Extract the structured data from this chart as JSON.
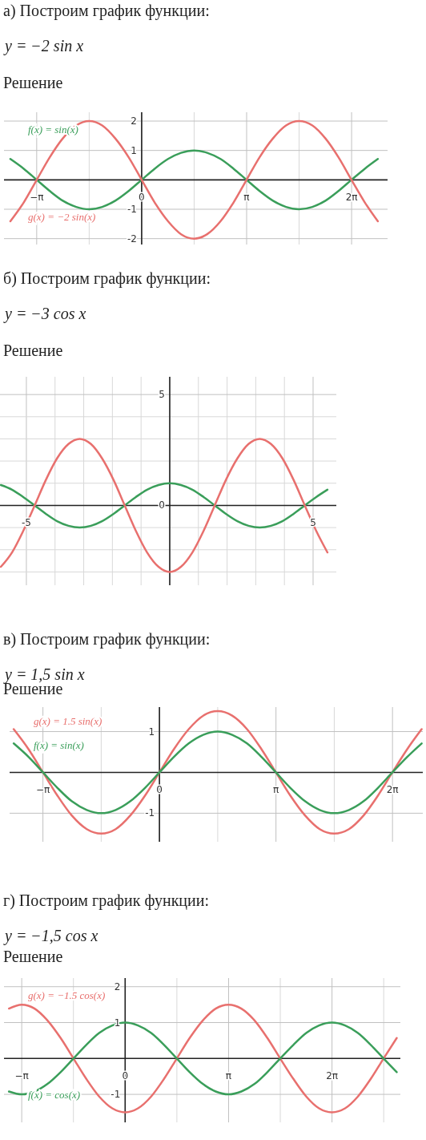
{
  "chart_data": [
    {
      "type": "line",
      "title": "а) Построим график функции:",
      "subtitle": "y = −2 sin x",
      "annotations": [
        "Решение"
      ],
      "xlim": [
        -4.12,
        7.36
      ],
      "ylim": [
        -2.2,
        2.3
      ],
      "xticks": [
        {
          "value": -3.1416,
          "label": "−π"
        },
        {
          "value": -1.5708,
          "label": null
        },
        {
          "value": 0,
          "label": "0"
        },
        {
          "value": 1.5708,
          "label": null
        },
        {
          "value": 3.1416,
          "label": "π"
        },
        {
          "value": 4.7124,
          "label": null
        },
        {
          "value": 6.2832,
          "label": "2π"
        }
      ],
      "yticks": [
        -2,
        -1,
        1,
        2
      ],
      "grid": true,
      "legend": "left",
      "x": [
        -3.93,
        -3.53,
        -3.14,
        -2.75,
        -2.36,
        -1.96,
        -1.57,
        -1.18,
        -0.79,
        -0.39,
        0,
        0.39,
        0.79,
        1.18,
        1.57,
        1.96,
        2.36,
        2.75,
        3.14,
        3.53,
        3.93,
        4.32,
        4.71,
        5.11,
        5.5,
        5.89,
        6.28,
        6.68,
        7.07
      ],
      "series": [
        {
          "name": "f(x) = sin(x)",
          "color": "#3a9e5a",
          "values": [
            0.71,
            0.38,
            0,
            -0.38,
            -0.71,
            -0.92,
            -1,
            -0.92,
            -0.71,
            -0.38,
            0,
            0.38,
            0.71,
            0.92,
            1,
            0.92,
            0.71,
            0.38,
            0,
            -0.38,
            -0.71,
            -0.92,
            -1,
            -0.92,
            -0.71,
            -0.38,
            0,
            0.38,
            0.71
          ]
        },
        {
          "name": "g(x) = −2 sin(x)",
          "color": "#e8706e",
          "values": [
            -1.41,
            -0.77,
            0,
            0.77,
            1.41,
            1.85,
            2,
            1.85,
            1.41,
            0.77,
            0,
            -0.77,
            -1.41,
            -1.85,
            -2,
            -1.85,
            -1.41,
            -0.77,
            0,
            0.77,
            1.41,
            1.85,
            2,
            1.85,
            1.41,
            0.77,
            0,
            -0.77,
            -1.41
          ]
        }
      ]
    },
    {
      "type": "line",
      "title": "б) Построим график функции:",
      "subtitle": "y = −3 cos x",
      "annotations": [
        "Решение"
      ],
      "xlim": [
        -5.92,
        5.81
      ],
      "ylim": [
        -3.6,
        5.8
      ],
      "xticks": [
        -5,
        {
          "value": -4,
          "label": null
        },
        {
          "value": -3,
          "label": null
        },
        {
          "value": -2,
          "label": null
        },
        {
          "value": -1,
          "label": null
        },
        {
          "value": 0,
          "label": null
        },
        {
          "value": 1,
          "label": null
        },
        {
          "value": 2,
          "label": null
        },
        {
          "value": 3,
          "label": null
        },
        {
          "value": 4,
          "label": null
        },
        5
      ],
      "yticks": [
        {
          "value": -3,
          "label": null
        },
        {
          "value": -2,
          "label": null
        },
        {
          "value": -1,
          "label": null
        },
        0,
        {
          "value": 1,
          "label": null
        },
        {
          "value": 2,
          "label": null
        },
        {
          "value": 3,
          "label": null
        },
        {
          "value": 4,
          "label": null
        },
        5
      ],
      "grid": true,
      "x": [
        -5.89,
        -5.5,
        -5.11,
        -4.71,
        -4.32,
        -3.93,
        -3.53,
        -3.14,
        -2.75,
        -2.36,
        -1.96,
        -1.57,
        -1.18,
        -0.79,
        -0.39,
        0,
        0.39,
        0.79,
        1.18,
        1.57,
        1.96,
        2.36,
        2.75,
        3.14,
        3.53,
        3.93,
        4.32,
        4.71,
        5.11,
        5.5
      ],
      "series": [
        {
          "color": "#3a9e5a",
          "values": [
            0.92,
            0.71,
            0.38,
            0,
            -0.38,
            -0.71,
            -0.92,
            -1,
            -0.92,
            -0.71,
            -0.38,
            0,
            0.38,
            0.71,
            0.92,
            1,
            0.92,
            0.71,
            0.38,
            0,
            -0.38,
            -0.71,
            -0.92,
            -1,
            -0.92,
            -0.71,
            -0.38,
            0,
            0.38,
            0.71
          ]
        },
        {
          "color": "#e8706e",
          "values": [
            -2.77,
            -2.12,
            -1.15,
            0,
            1.15,
            2.12,
            2.77,
            3,
            2.77,
            2.12,
            1.15,
            0,
            -1.15,
            -2.12,
            -2.77,
            -3,
            -2.77,
            -2.12,
            -1.15,
            0,
            1.15,
            2.12,
            2.77,
            3,
            2.77,
            2.12,
            1.15,
            0,
            -1.15,
            -2.12
          ]
        }
      ]
    },
    {
      "type": "line",
      "title": "в) Построим график функции:",
      "subtitle": "y = 1,5 sin x",
      "annotations": [
        "Решение"
      ],
      "xlim": [
        -4.04,
        7.1
      ],
      "ylim": [
        -1.7,
        1.6
      ],
      "xticks": [
        {
          "value": -3.1416,
          "label": "−π"
        },
        {
          "value": -1.5708,
          "label": null
        },
        {
          "value": 0,
          "label": "0"
        },
        {
          "value": 1.5708,
          "label": null
        },
        {
          "value": 3.1416,
          "label": "π"
        },
        {
          "value": 4.7124,
          "label": null
        },
        {
          "value": 6.2832,
          "label": "2π"
        }
      ],
      "yticks": [
        -1,
        1
      ],
      "grid": true,
      "legend": "top left",
      "x": [
        -3.93,
        -3.53,
        -3.14,
        -2.75,
        -2.36,
        -1.96,
        -1.57,
        -1.18,
        -0.79,
        -0.39,
        0,
        0.39,
        0.79,
        1.18,
        1.57,
        1.96,
        2.36,
        2.75,
        3.14,
        3.53,
        3.93,
        4.32,
        4.71,
        5.11,
        5.5,
        5.89,
        6.28,
        6.68,
        7.07
      ],
      "series": [
        {
          "name": "g(x) = 1.5 sin(x)",
          "color": "#e8706e",
          "values": [
            1.06,
            0.57,
            0,
            -0.57,
            -1.06,
            -1.39,
            -1.5,
            -1.39,
            -1.06,
            -0.57,
            0,
            0.57,
            1.06,
            1.39,
            1.5,
            1.39,
            1.06,
            0.57,
            0,
            -0.57,
            -1.06,
            -1.39,
            -1.5,
            -1.39,
            -1.06,
            -0.57,
            0,
            0.57,
            1.06
          ]
        },
        {
          "name": "f(x) = sin(x)",
          "color": "#3a9e5a",
          "values": [
            0.71,
            0.38,
            0,
            -0.38,
            -0.71,
            -0.92,
            -1,
            -0.92,
            -0.71,
            -0.38,
            0,
            0.38,
            0.71,
            0.92,
            1,
            0.92,
            0.71,
            0.38,
            0,
            -0.38,
            -0.71,
            -0.92,
            -1,
            -0.92,
            -0.71,
            -0.38,
            0,
            0.38,
            0.71
          ]
        }
      ]
    },
    {
      "type": "line",
      "title": "г) Построим график функции:",
      "subtitle": "y = −1,5 cos x",
      "annotations": [
        "Решение"
      ],
      "xlim": [
        -3.68,
        8.36
      ],
      "ylim": [
        -1.78,
        2.24
      ],
      "xticks": [
        {
          "value": -3.1416,
          "label": "−π"
        },
        {
          "value": -1.5708,
          "label": null
        },
        {
          "value": 0,
          "label": "0"
        },
        {
          "value": 1.5708,
          "label": null
        },
        {
          "value": 3.1416,
          "label": "π"
        },
        {
          "value": 4.7124,
          "label": null
        },
        {
          "value": 6.2832,
          "label": "2π"
        },
        {
          "value": 7.854,
          "label": null
        }
      ],
      "yticks": [
        -1,
        1,
        2
      ],
      "grid": true,
      "legend": "left",
      "x": [
        -3.53,
        -3.14,
        -2.75,
        -2.36,
        -1.96,
        -1.57,
        -1.18,
        -0.79,
        -0.39,
        0,
        0.39,
        0.79,
        1.18,
        1.57,
        1.96,
        2.36,
        2.75,
        3.14,
        3.53,
        3.93,
        4.32,
        4.71,
        5.11,
        5.5,
        5.89,
        6.28,
        6.68,
        7.07,
        7.46,
        7.85,
        8.25
      ],
      "series": [
        {
          "name": "g(x) = −1.5 cos(x)",
          "color": "#e8706e",
          "values": [
            1.39,
            1.5,
            1.39,
            1.06,
            0.57,
            0,
            -0.57,
            -1.06,
            -1.39,
            -1.5,
            -1.39,
            -1.06,
            -0.57,
            0,
            0.57,
            1.06,
            1.39,
            1.5,
            1.39,
            1.06,
            0.57,
            0,
            -0.57,
            -1.06,
            -1.39,
            -1.5,
            -1.39,
            -1.06,
            -0.57,
            0,
            0.57
          ]
        },
        {
          "name": "f(x) = cos(x)",
          "color": "#3a9e5a",
          "values": [
            -0.92,
            -1,
            -0.92,
            -0.71,
            -0.38,
            0,
            0.38,
            0.71,
            0.92,
            1,
            0.92,
            0.71,
            0.38,
            0,
            -0.38,
            -0.71,
            -0.92,
            -1,
            -0.92,
            -0.71,
            -0.38,
            0,
            0.38,
            0.71,
            0.92,
            1,
            0.92,
            0.71,
            0.38,
            0,
            -0.38
          ]
        }
      ]
    }
  ]
}
